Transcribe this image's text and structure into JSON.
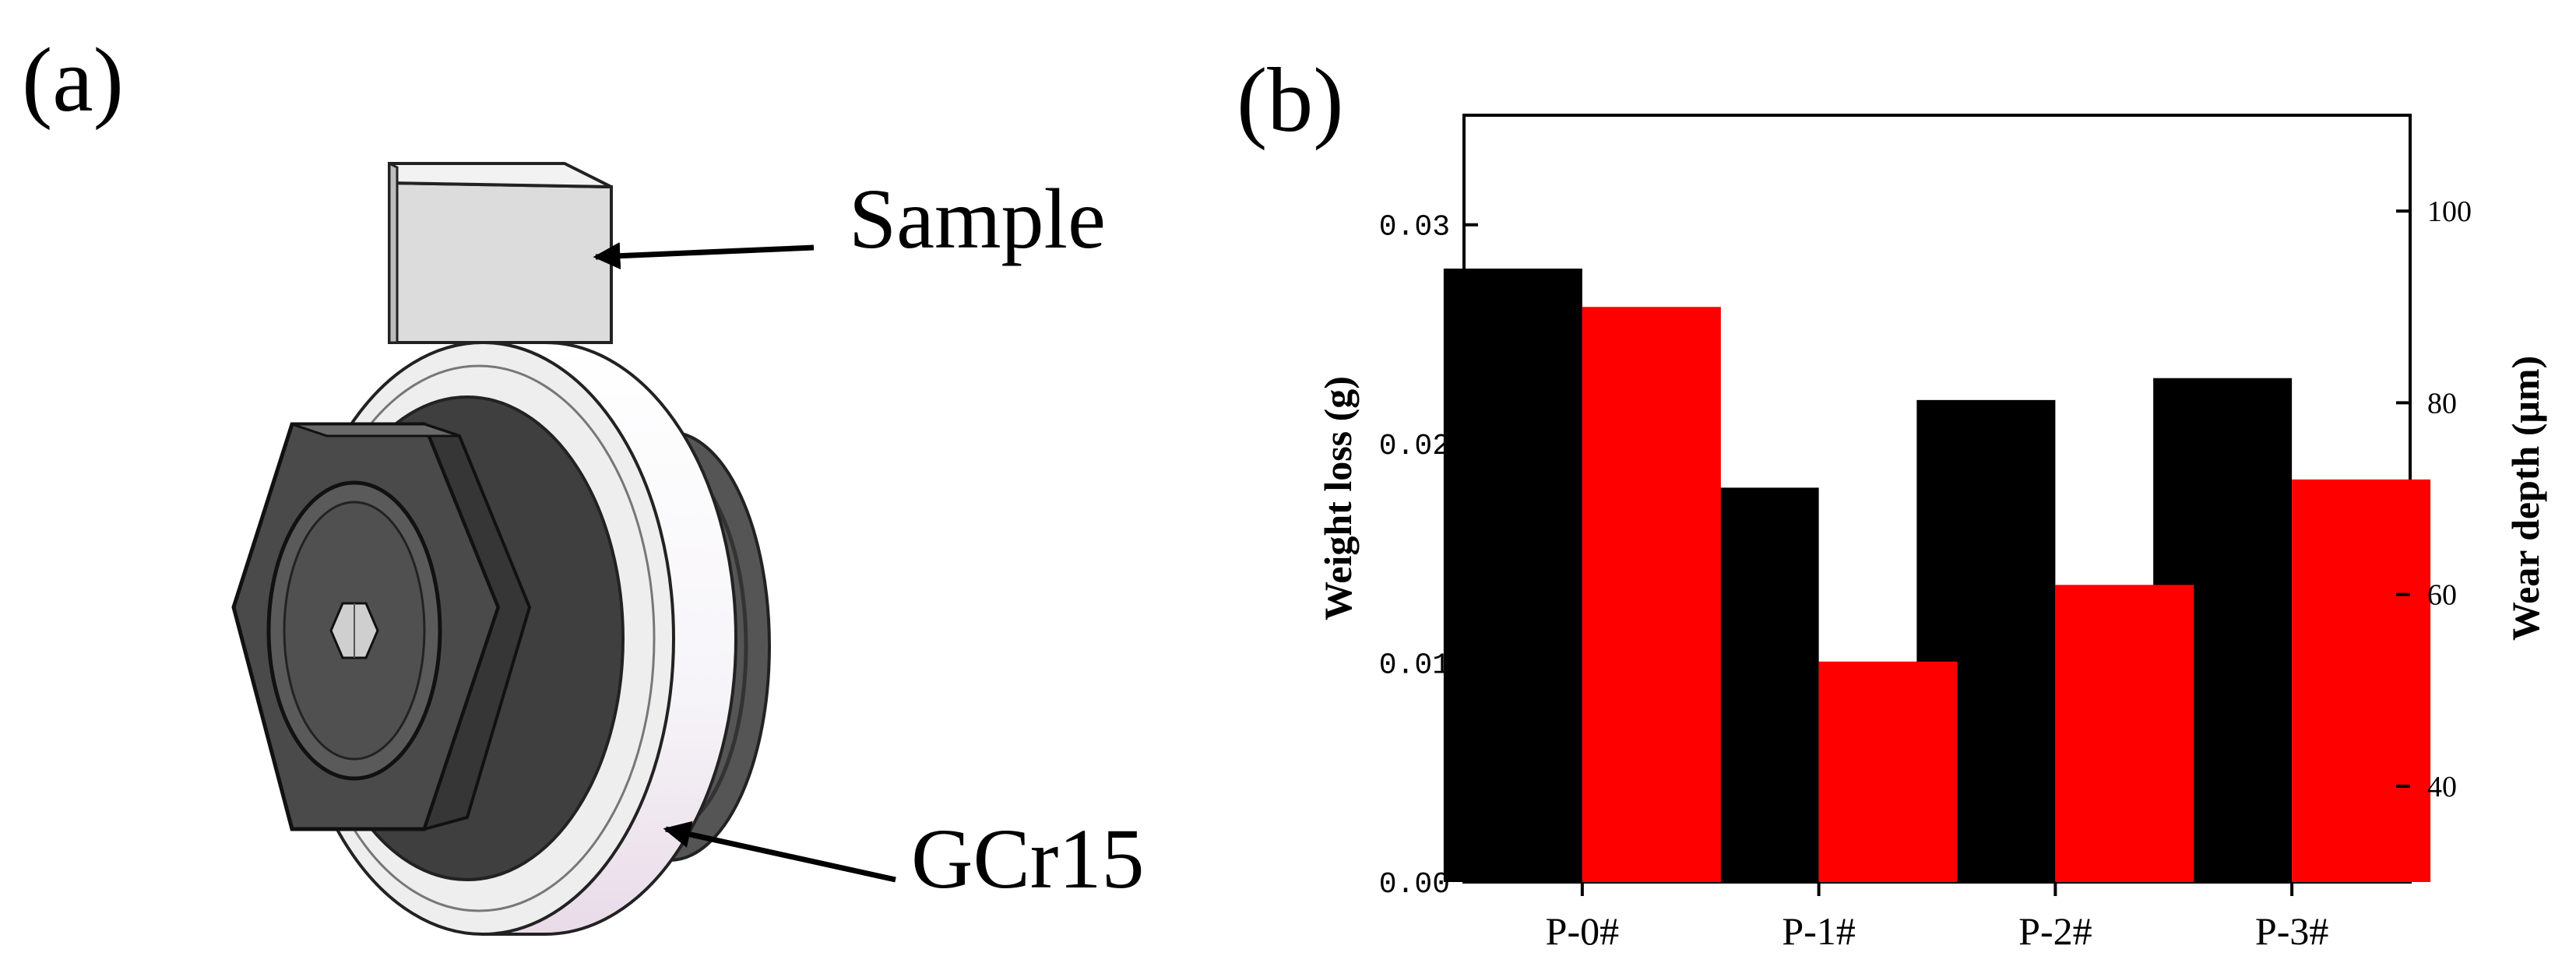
{
  "panel_a": {
    "label": "(a)",
    "sample_label": "Sample",
    "ring_label": "GCr15",
    "colors": {
      "block": "#dcdcdc",
      "ring": "#eeeeee",
      "hex": "#4a4a4a",
      "outline": "#222222"
    }
  },
  "panel_b": {
    "label": "(b)"
  },
  "chart_data": {
    "type": "bar",
    "title": "",
    "categories": [
      "P-0#",
      "P-1#",
      "P-2#",
      "P-3#"
    ],
    "xlabel": "",
    "series": [
      {
        "name": "Weight loss",
        "axis": "left",
        "color": "#000000",
        "values": [
          0.028,
          0.018,
          0.022,
          0.023
        ]
      },
      {
        "name": "Wear depth",
        "axis": "right",
        "color": "#ff0000",
        "values": [
          90,
          53,
          61,
          72
        ]
      }
    ],
    "left_axis": {
      "label": "Weight loss (g)",
      "ylim": [
        0,
        0.035
      ],
      "ticks": [
        0,
        0.01,
        0.02,
        0.03
      ],
      "tick_labels": [
        "0.00",
        "0.01",
        "0.02",
        "0.03"
      ]
    },
    "right_axis": {
      "label": "Wear depth (μm)",
      "ylim": [
        30,
        110
      ],
      "ticks": [
        40,
        60,
        80,
        100
      ],
      "tick_labels": [
        "40",
        "60",
        "80",
        "100"
      ]
    },
    "grid": false,
    "legend": "none"
  }
}
